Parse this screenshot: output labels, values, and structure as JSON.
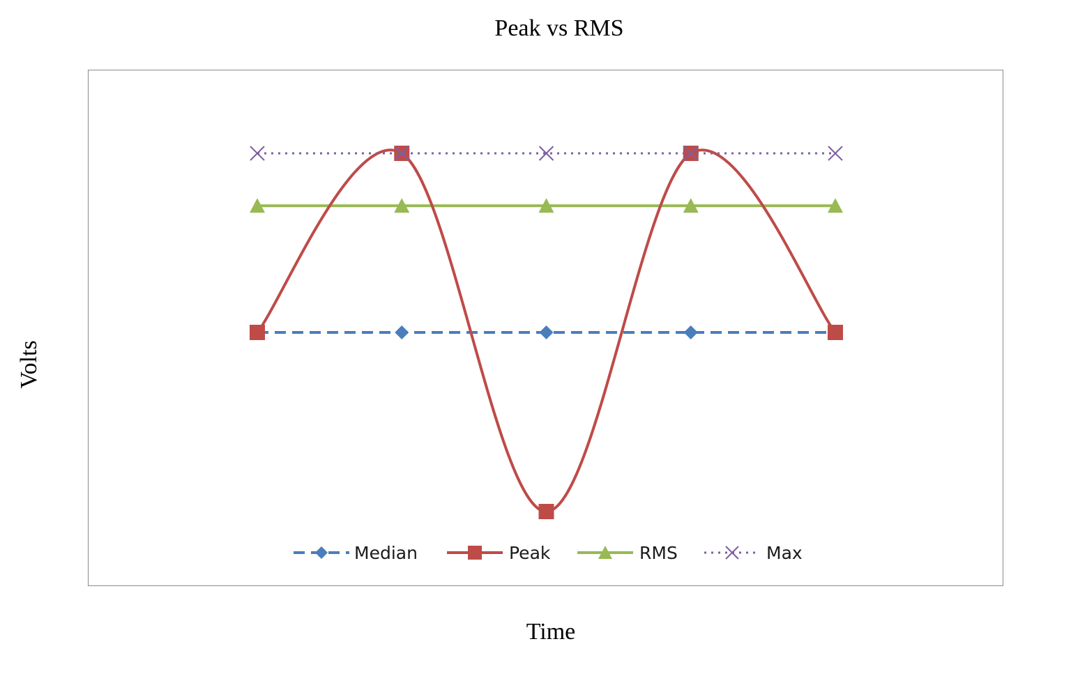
{
  "chart_data": {
    "type": "line",
    "title": "Peak vs RMS",
    "xlabel": "Time",
    "ylabel": "Volts",
    "x": [
      0,
      1,
      2,
      3,
      4
    ],
    "ylim": [
      -1,
      1
    ],
    "grid": false,
    "legend_position": "bottom",
    "series": [
      {
        "name": "Median",
        "values": [
          0,
          0,
          0,
          0,
          0
        ],
        "color": "#4a7ebb",
        "line": "dashed",
        "marker": "diamond"
      },
      {
        "name": "Peak",
        "values": [
          0,
          1,
          -1,
          1,
          0
        ],
        "color": "#be4b48",
        "line": "solid-smooth",
        "marker": "square"
      },
      {
        "name": "RMS",
        "values": [
          0.707,
          0.707,
          0.707,
          0.707,
          0.707
        ],
        "color": "#98b954",
        "line": "solid",
        "marker": "triangle"
      },
      {
        "name": "Max",
        "values": [
          1,
          1,
          1,
          1,
          1
        ],
        "color": "#7d60a0",
        "line": "dotted",
        "marker": "x"
      }
    ]
  }
}
